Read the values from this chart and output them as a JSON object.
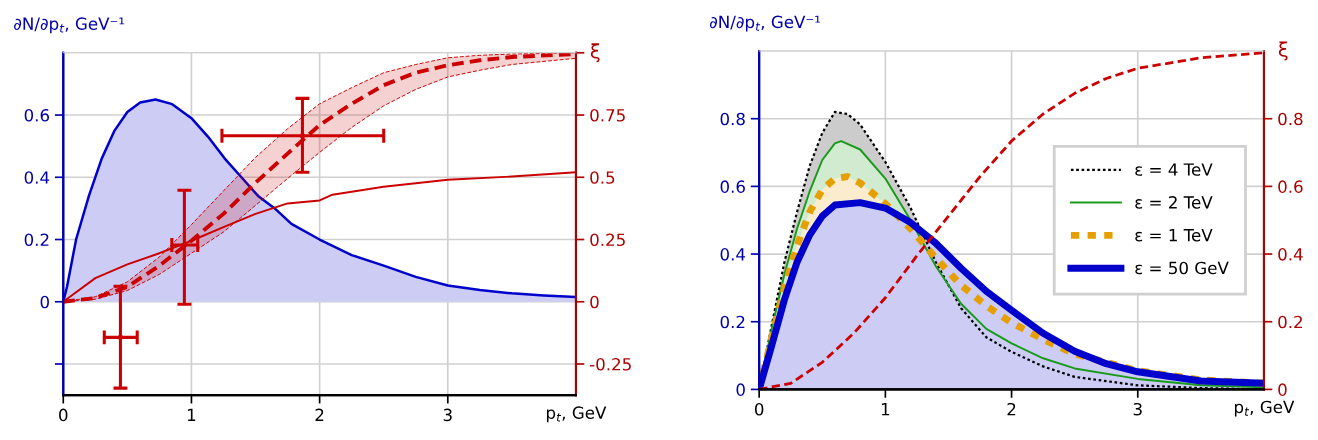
{
  "chart_data": [
    {
      "type": "area",
      "xlabel": "p$_{t}$, GeV",
      "ylabel": "∂N/∂p$_{t}$, GeV⁻¹",
      "y2label": "ξ",
      "xlim": [
        0,
        4
      ],
      "xticks": [
        0,
        1,
        2,
        3
      ],
      "ylim": [
        -0.3,
        0.8
      ],
      "yticks": [
        {
          "value": -0.2,
          "label": null
        },
        0,
        0.2,
        0.4,
        0.6
      ],
      "y2lim": [
        -0.375,
        1.0
      ],
      "y2ticks": [
        -0.25,
        0,
        0.25,
        0.5,
        0.75,
        {
          "value": 1.0,
          "label": null
        }
      ],
      "grid": true,
      "series": [
        {
          "color": "#0000cc",
          "line_style": "solid",
          "x": [
            0,
            0.03,
            0.1,
            0.2,
            0.3,
            0.4,
            0.5,
            0.6,
            0.72,
            0.85,
            1.0,
            1.13,
            1.26,
            1.39,
            1.52,
            1.65,
            1.78,
            2.0,
            2.25,
            2.5,
            2.75,
            3.0,
            3.25,
            3.5,
            3.75,
            4.0
          ],
          "values": [
            0,
            0.05,
            0.2,
            0.34,
            0.46,
            0.55,
            0.61,
            0.64,
            0.65,
            0.635,
            0.59,
            0.53,
            0.46,
            0.4,
            0.34,
            0.3,
            0.25,
            0.2,
            0.15,
            0.116,
            0.08,
            0.052,
            0.038,
            0.027,
            0.02,
            0.015
          ]
        },
        {
          "type": "line",
          "axis": "y2",
          "color": "#cc0000",
          "line_style": "solid",
          "x": [
            0,
            0.25,
            0.5,
            0.75,
            1.0,
            1.25,
            1.5,
            1.75,
            2.0,
            2.1,
            2.5,
            3.0,
            3.5,
            4.0
          ],
          "values": [
            0,
            0.095,
            0.15,
            0.195,
            0.245,
            0.3,
            0.353,
            0.395,
            0.407,
            0.43,
            0.462,
            0.49,
            0.503,
            0.52
          ]
        },
        {
          "type": "line",
          "axis": "y2",
          "color": "#cc0000",
          "line_style": "dashed",
          "x": [
            0,
            0.25,
            0.5,
            0.75,
            1.0,
            1.25,
            1.5,
            1.75,
            2.0,
            2.25,
            2.5,
            2.75,
            3.0,
            3.25,
            3.5,
            4.0
          ],
          "values": [
            0,
            0.015,
            0.06,
            0.145,
            0.245,
            0.353,
            0.478,
            0.595,
            0.71,
            0.795,
            0.87,
            0.92,
            0.95,
            0.97,
            0.983,
            0.995
          ],
          "lower": [
            0,
            0.01,
            0.045,
            0.11,
            0.195,
            0.28,
            0.387,
            0.495,
            0.6,
            0.7,
            0.787,
            0.853,
            0.903,
            0.93,
            0.953,
            0.978
          ],
          "upper": [
            0,
            0.02,
            0.08,
            0.18,
            0.31,
            0.445,
            0.58,
            0.695,
            0.795,
            0.86,
            0.92,
            0.953,
            0.98,
            0.99,
            0.995,
            1.0
          ]
        },
        {
          "type": "scatter",
          "axis": "y2",
          "color": "#cc0000",
          "marker": "circle",
          "x": [
            0.446,
            0.945,
            1.866
          ],
          "values": [
            -0.143,
            0.228,
            0.667
          ],
          "errors": [
            [
              -0.347,
              0.062
            ],
            [
              -0.01,
              0.448
            ],
            [
              0.52,
              0.817
            ]
          ],
          "xerrors": [
            [
              0.32,
              0.577
            ],
            [
              0.847,
              1.049
            ],
            [
              1.238,
              2.5
            ]
          ]
        }
      ]
    },
    {
      "type": "area",
      "xlabel": "p$_{t}$, GeV",
      "ylabel": "∂N/∂p$_{t}$, GeV⁻¹",
      "y2label": "ξ",
      "xlim": [
        0,
        4
      ],
      "xticks": [
        0,
        1,
        2,
        3
      ],
      "ylim": [
        0,
        1.0
      ],
      "yticks": [
        0,
        0.2,
        0.4,
        0.6,
        0.8
      ],
      "y2lim": [
        0,
        1.0
      ],
      "y2ticks": [
        0,
        0.2,
        0.4,
        0.6,
        0.8
      ],
      "grid": true,
      "legend": "right",
      "series": [
        {
          "name": "ε = 4 TeV",
          "color": "#000000",
          "line_style": "dotted",
          "x": [
            0,
            0.1,
            0.2,
            0.3,
            0.4,
            0.5,
            0.6,
            0.7,
            0.8,
            1.0,
            1.2,
            1.4,
            1.6,
            1.8,
            2.0,
            2.25,
            2.5,
            3.0,
            3.5,
            4.0
          ],
          "values": [
            0,
            0.19,
            0.376,
            0.524,
            0.66,
            0.758,
            0.82,
            0.814,
            0.783,
            0.672,
            0.536,
            0.376,
            0.24,
            0.154,
            0.111,
            0.068,
            0.037,
            0.012,
            0.004,
            0
          ]
        },
        {
          "name": "ε = 2 TeV",
          "color": "#1a9a1a",
          "line_style": "solid",
          "x": [
            0,
            0.1,
            0.2,
            0.3,
            0.4,
            0.5,
            0.6,
            0.65,
            0.8,
            1.0,
            1.2,
            1.4,
            1.6,
            1.8,
            2.0,
            2.25,
            2.5,
            3.0,
            3.5,
            4.0
          ],
          "values": [
            0,
            0.18,
            0.34,
            0.475,
            0.585,
            0.678,
            0.727,
            0.734,
            0.709,
            0.623,
            0.5,
            0.364,
            0.253,
            0.179,
            0.136,
            0.092,
            0.062,
            0.031,
            0.012,
            0.006
          ]
        },
        {
          "name": "ε = 1 TeV",
          "color": "#e69f00",
          "line_style": "dotted",
          "x": [
            0,
            0.1,
            0.2,
            0.3,
            0.4,
            0.5,
            0.6,
            0.7,
            0.8,
            1.0,
            1.2,
            1.4,
            1.6,
            1.8,
            2.0,
            2.25,
            2.5,
            3.0,
            3.5,
            4.0
          ],
          "values": [
            0,
            0.154,
            0.3,
            0.425,
            0.524,
            0.59,
            0.623,
            0.629,
            0.61,
            0.549,
            0.475,
            0.388,
            0.308,
            0.247,
            0.197,
            0.148,
            0.105,
            0.055,
            0.028,
            0.018
          ]
        },
        {
          "name": "ε = 50 GeV",
          "color": "#0000cc",
          "line_style": "solid",
          "x": [
            0,
            0.1,
            0.2,
            0.3,
            0.4,
            0.5,
            0.6,
            0.8,
            1.0,
            1.2,
            1.4,
            1.6,
            1.8,
            2.0,
            2.25,
            2.5,
            2.75,
            3.0,
            3.5,
            4.0
          ],
          "values": [
            0,
            0.13,
            0.265,
            0.376,
            0.456,
            0.512,
            0.545,
            0.552,
            0.536,
            0.493,
            0.432,
            0.358,
            0.29,
            0.234,
            0.166,
            0.113,
            0.076,
            0.052,
            0.025,
            0.018
          ]
        },
        {
          "type": "line",
          "axis": "y2",
          "color": "#cc0000",
          "line_style": "dashed",
          "x": [
            0,
            0.25,
            0.5,
            0.75,
            1.0,
            1.25,
            1.5,
            1.75,
            2.0,
            2.25,
            2.5,
            2.75,
            3.0,
            3.5,
            4.0
          ],
          "values": [
            0,
            0.018,
            0.08,
            0.166,
            0.271,
            0.395,
            0.512,
            0.629,
            0.734,
            0.814,
            0.875,
            0.919,
            0.949,
            0.98,
            0.995
          ]
        }
      ]
    }
  ]
}
